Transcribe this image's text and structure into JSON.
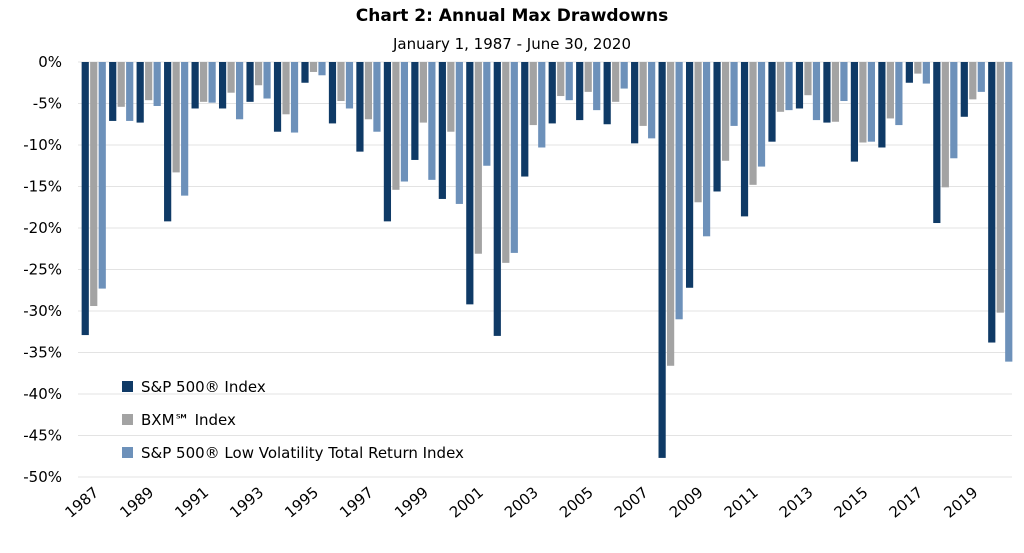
{
  "chart_data": {
    "type": "bar",
    "title": "Chart 2: Annual Max Drawdowns",
    "subtitle": "January 1, 1987 - June 30, 2020",
    "xlabel": "",
    "ylabel": "",
    "ylim": [
      -50,
      0
    ],
    "yticks": [
      "0%",
      "-5%",
      "-10%",
      "-15%",
      "-20%",
      "-25%",
      "-30%",
      "-35%",
      "-40%",
      "-45%",
      "-50%"
    ],
    "categories": [
      "1987",
      "1988",
      "1989",
      "1990",
      "1991",
      "1992",
      "1993",
      "1994",
      "1995",
      "1996",
      "1997",
      "1998",
      "1999",
      "2000",
      "2001",
      "2002",
      "2003",
      "2004",
      "2005",
      "2006",
      "2007",
      "2008",
      "2009",
      "2010",
      "2011",
      "2012",
      "2013",
      "2014",
      "2015",
      "2016",
      "2017",
      "2018",
      "2019",
      "2020"
    ],
    "xtick_labels": [
      "1987",
      "",
      "1989",
      "",
      "1991",
      "",
      "1993",
      "",
      "1995",
      "",
      "1997",
      "",
      "1999",
      "",
      "2001",
      "",
      "2003",
      "",
      "2005",
      "",
      "2007",
      "",
      "2009",
      "",
      "2011",
      "",
      "2013",
      "",
      "2015",
      "",
      "2017",
      "",
      "2019",
      ""
    ],
    "grid": true,
    "legend_position": "bottom-left",
    "series": [
      {
        "name": "S&P 500® Index",
        "color": "#0f3a66",
        "values": [
          -32.9,
          -7.1,
          -7.3,
          -19.2,
          -5.6,
          -5.6,
          -4.8,
          -8.4,
          -2.5,
          -7.4,
          -10.8,
          -19.2,
          -11.8,
          -16.5,
          -29.2,
          -33.0,
          -13.8,
          -7.4,
          -7.0,
          -7.5,
          -9.8,
          -47.7,
          -27.2,
          -15.6,
          -18.6,
          -9.6,
          -5.6,
          -7.3,
          -12.0,
          -10.3,
          -2.5,
          -19.4,
          -6.6,
          -33.8
        ]
      },
      {
        "name": "BXM℠ Index",
        "color": "#a3a3a3",
        "values": [
          -29.4,
          -5.4,
          -4.6,
          -13.3,
          -4.8,
          -3.7,
          -2.8,
          -6.3,
          -1.2,
          -4.7,
          -6.9,
          -15.4,
          -7.3,
          -8.4,
          -23.1,
          -24.2,
          -7.6,
          -4.1,
          -3.6,
          -4.8,
          -7.7,
          -36.6,
          -16.9,
          -11.9,
          -14.8,
          -6.0,
          -4.0,
          -7.2,
          -9.7,
          -6.8,
          -1.4,
          -15.1,
          -4.5,
          -30.2
        ]
      },
      {
        "name": "S&P 500® Low Volatility Total Return Index",
        "color": "#6d91ba",
        "values": [
          -27.3,
          -7.1,
          -5.3,
          -16.1,
          -4.9,
          -6.9,
          -4.4,
          -8.5,
          -1.6,
          -5.6,
          -8.4,
          -14.4,
          -14.2,
          -17.1,
          -12.5,
          -23.0,
          -10.3,
          -4.6,
          -5.8,
          -3.2,
          -9.2,
          -31.0,
          -21.0,
          -7.7,
          -12.6,
          -5.8,
          -7.0,
          -4.7,
          -9.6,
          -7.6,
          -2.6,
          -11.6,
          -3.6,
          -36.1
        ]
      }
    ]
  }
}
